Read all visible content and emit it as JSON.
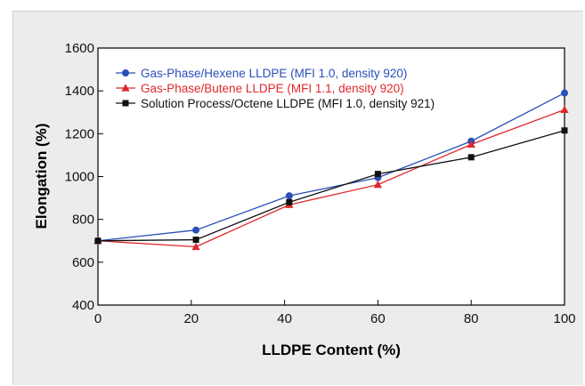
{
  "chart_data": {
    "type": "line",
    "title": "",
    "xlabel": "LLDPE Content (%)",
    "ylabel": "Elongation (%)",
    "xlim": [
      0,
      100
    ],
    "ylim": [
      400,
      1600
    ],
    "x_ticks": [
      0,
      20,
      40,
      60,
      80,
      100
    ],
    "y_ticks": [
      400,
      600,
      800,
      1000,
      1200,
      1400,
      1600
    ],
    "x_tick_labels": [
      "0",
      "20",
      "40",
      "60",
      "80",
      "100"
    ],
    "y_tick_labels": [
      "400",
      "600",
      "800",
      "1000",
      "1200",
      "1400",
      "1600"
    ],
    "grid": false,
    "legend_position": "top-left",
    "series": [
      {
        "name": "Gas-Phase/Hexene LLDPE (MFI 1.0, density 920)",
        "color": "#2a4fb8",
        "marker": "circle",
        "x": [
          0,
          21,
          41,
          60,
          80,
          100
        ],
        "y": [
          700,
          750,
          910,
          995,
          1165,
          1390
        ]
      },
      {
        "name": "Gas-Phase/Butene LLDPE (MFI 1.1, density 920)",
        "color": "#e0282d",
        "marker": "triangle",
        "x": [
          0,
          21,
          41,
          60,
          80,
          100
        ],
        "y": [
          700,
          672,
          868,
          962,
          1150,
          1312
        ]
      },
      {
        "name": "Solution Process/Octene LLDPE (MFI 1.0, density 921)",
        "color": "#111111",
        "marker": "square",
        "x": [
          0,
          21,
          41,
          60,
          80,
          100
        ],
        "y": [
          700,
          705,
          880,
          1012,
          1090,
          1215
        ]
      }
    ]
  }
}
